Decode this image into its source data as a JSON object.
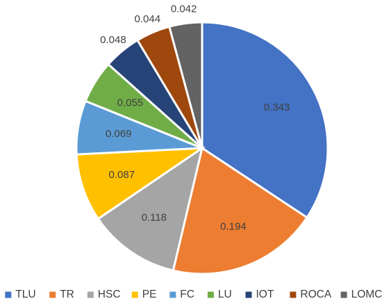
{
  "chart_data": {
    "type": "pie",
    "title": "",
    "legend_position": "bottom",
    "categories": [
      "TLU",
      "TR",
      "HSC",
      "PE",
      "FC",
      "LU",
      "IOT",
      "ROCA",
      "LOMC"
    ],
    "values": [
      0.343,
      0.194,
      0.118,
      0.087,
      0.069,
      0.055,
      0.048,
      0.044,
      0.042
    ],
    "labels": [
      "0.343",
      "0.194",
      "0.118",
      "0.087",
      "0.069",
      "0.055",
      "0.048",
      "0.044",
      "0.042"
    ],
    "colors": [
      "#4472C4",
      "#ED7D31",
      "#A5A5A5",
      "#FFC000",
      "#5B9BD5",
      "#70AD47",
      "#264478",
      "#9E480E",
      "#636363"
    ]
  }
}
